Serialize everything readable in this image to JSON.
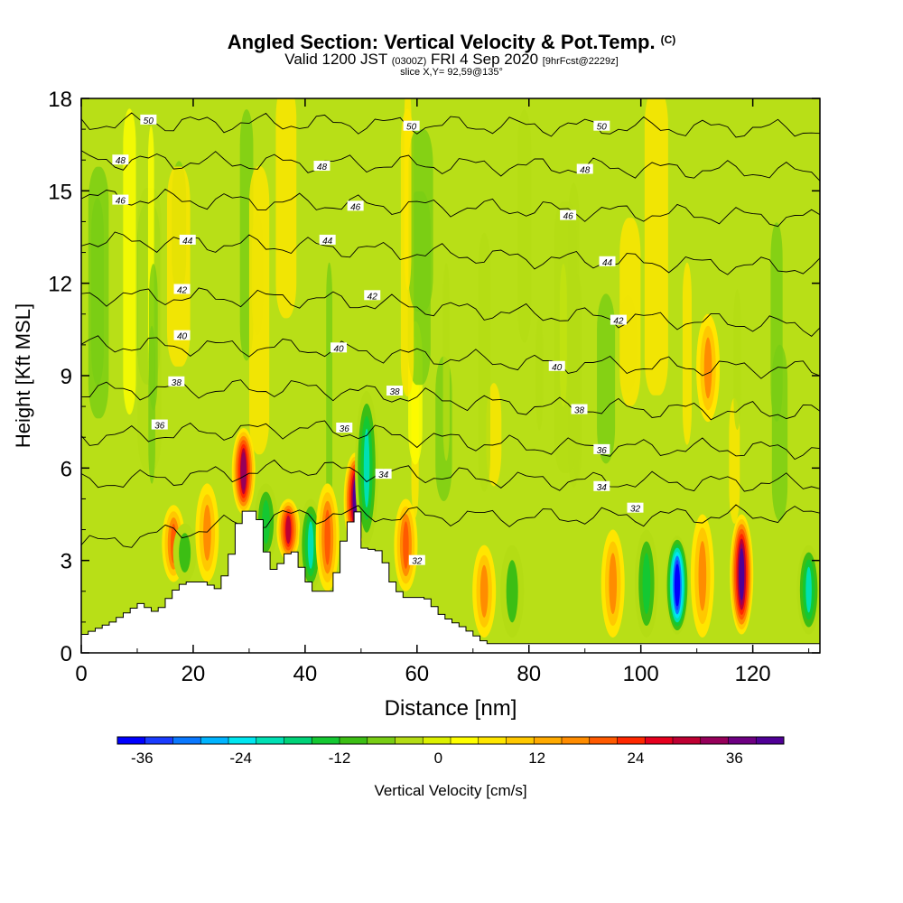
{
  "title": {
    "main": "Angled Section: Vertical Velocity & Pot.Temp.",
    "main_suffix": "(C)",
    "valid_prefix": "Valid 1200 JST",
    "valid_zulu": "(0300Z)",
    "valid_date": "FRI 4 Sep 2020",
    "forecast": "[9hrFcst@2229z]",
    "slice": "slice X,Y= 92,59@135°"
  },
  "chart_data": {
    "type": "heatmap",
    "title": "Angled Section: Vertical Velocity & Pot.Temp.",
    "xlabel": "Distance [nm]",
    "ylabel": "Height [Kft MSL]",
    "xlim": [
      0,
      132
    ],
    "ylim": [
      0,
      18
    ],
    "x_ticks": [
      "0",
      "20",
      "40",
      "60",
      "80",
      "100",
      "120"
    ],
    "y_ticks": [
      "0",
      "3",
      "6",
      "9",
      "12",
      "15",
      "18"
    ],
    "colorbar": {
      "label": "Vertical Velocity [cm/s]",
      "tick_labels": [
        "-36",
        "-24",
        "-12",
        "0",
        "12",
        "24",
        "36"
      ],
      "tick_values": [
        -36,
        -24,
        -12,
        0,
        12,
        24,
        36
      ],
      "range": [
        -39,
        42
      ],
      "colors": [
        "#0000ff",
        "#1a3cff",
        "#0a78ff",
        "#00b4ff",
        "#00e6f0",
        "#00e0b4",
        "#00d278",
        "#14c832",
        "#3cbe14",
        "#78cd14",
        "#b4dc14",
        "#dcf000",
        "#ffff00",
        "#ffe600",
        "#ffc800",
        "#ffaa00",
        "#ff8c00",
        "#ff5a00",
        "#ff2800",
        "#e6001e",
        "#be0032",
        "#96005a",
        "#6e0082",
        "#500096"
      ]
    },
    "vertical_velocity_features": [
      {
        "x": 16.5,
        "z_bottom": 2.3,
        "z_top": 4.8,
        "value": 22
      },
      {
        "x": 18.5,
        "z_bottom": 2.3,
        "z_top": 4.2,
        "value": -10
      },
      {
        "x": 22.5,
        "z_bottom": 2.3,
        "z_top": 5.5,
        "value": 14
      },
      {
        "x": 29,
        "z_bottom": 4.5,
        "z_top": 7.3,
        "value": 34
      },
      {
        "x": 33,
        "z_bottom": 3.0,
        "z_top": 5.5,
        "value": -14
      },
      {
        "x": 37,
        "z_bottom": 3.0,
        "z_top": 5.0,
        "value": 28
      },
      {
        "x": 41,
        "z_bottom": 2.0,
        "z_top": 5.0,
        "value": -20
      },
      {
        "x": 44,
        "z_bottom": 2.0,
        "z_top": 5.5,
        "value": 22
      },
      {
        "x": 49,
        "z_bottom": 3.4,
        "z_top": 6.5,
        "value": 40
      },
      {
        "x": 51,
        "z_bottom": 3.5,
        "z_top": 8.5,
        "value": -22
      },
      {
        "x": 58,
        "z_bottom": 2.0,
        "z_top": 5.0,
        "value": 20
      },
      {
        "x": 72,
        "z_bottom": 0.5,
        "z_top": 3.5,
        "value": 16
      },
      {
        "x": 77,
        "z_bottom": 0.5,
        "z_top": 3.5,
        "value": -12
      },
      {
        "x": 95,
        "z_bottom": 0.5,
        "z_top": 4.0,
        "value": 14
      },
      {
        "x": 101,
        "z_bottom": 0.5,
        "z_top": 4.0,
        "value": -14
      },
      {
        "x": 106.5,
        "z_bottom": 0.6,
        "z_top": 3.8,
        "value": -38
      },
      {
        "x": 111,
        "z_bottom": 0.5,
        "z_top": 4.5,
        "value": 14
      },
      {
        "x": 112,
        "z_bottom": 7.5,
        "z_top": 11.0,
        "value": 16
      },
      {
        "x": 118,
        "z_bottom": 0.6,
        "z_top": 4.5,
        "value": 40
      },
      {
        "x": 130,
        "z_bottom": 0.6,
        "z_top": 3.5,
        "value": -22
      }
    ],
    "terrain_height_kft": [
      [
        0,
        0.6
      ],
      [
        5,
        1.0
      ],
      [
        10,
        1.6
      ],
      [
        13,
        1.3
      ],
      [
        16,
        2.0
      ],
      [
        18,
        2.3
      ],
      [
        22,
        2.3
      ],
      [
        23.5,
        2.0
      ],
      [
        25,
        2.5
      ],
      [
        26,
        3.0
      ],
      [
        27,
        3.8
      ],
      [
        28,
        4.6
      ],
      [
        31,
        4.6
      ],
      [
        32,
        3.5
      ],
      [
        34,
        2.6
      ],
      [
        36,
        3.2
      ],
      [
        38,
        3.3
      ],
      [
        39,
        2.6
      ],
      [
        41,
        2.0
      ],
      [
        44,
        2.0
      ],
      [
        45,
        2.6
      ],
      [
        46,
        3.5
      ],
      [
        48,
        4.5
      ],
      [
        49,
        4.6
      ],
      [
        50,
        3.4
      ],
      [
        53,
        3.3
      ],
      [
        55,
        2.3
      ],
      [
        57,
        1.8
      ],
      [
        59,
        1.8
      ],
      [
        61,
        1.8
      ],
      [
        64,
        1.2
      ],
      [
        68,
        0.8
      ],
      [
        72,
        0.3
      ],
      [
        132,
        0.3
      ]
    ],
    "theta_contours": [
      {
        "label": "32",
        "z_at_x": [
          [
            0,
            3.5
          ],
          [
            40,
            4.5
          ],
          [
            80,
            4.4
          ],
          [
            132,
            4.5
          ]
        ],
        "label_positions": [
          [
            60,
            3.0
          ],
          [
            99,
            4.7
          ]
        ]
      },
      {
        "label": "34",
        "z_at_x": [
          [
            0,
            5.5
          ],
          [
            40,
            6.0
          ],
          [
            80,
            5.6
          ],
          [
            132,
            5.5
          ]
        ],
        "label_positions": [
          [
            54,
            5.8
          ],
          [
            93,
            5.4
          ]
        ]
      },
      {
        "label": "36",
        "z_at_x": [
          [
            0,
            7.0
          ],
          [
            40,
            7.3
          ],
          [
            80,
            6.7
          ],
          [
            132,
            6.6
          ]
        ],
        "label_positions": [
          [
            14,
            7.4
          ],
          [
            47,
            7.3
          ],
          [
            93,
            6.6
          ]
        ]
      },
      {
        "label": "38",
        "z_at_x": [
          [
            0,
            8.5
          ],
          [
            40,
            8.6
          ],
          [
            80,
            8.0
          ],
          [
            132,
            7.8
          ]
        ],
        "label_positions": [
          [
            17,
            8.8
          ],
          [
            56,
            8.5
          ],
          [
            89,
            7.9
          ]
        ]
      },
      {
        "label": "40",
        "z_at_x": [
          [
            0,
            10.0
          ],
          [
            40,
            9.9
          ],
          [
            80,
            9.4
          ],
          [
            132,
            9.2
          ]
        ],
        "label_positions": [
          [
            18,
            10.3
          ],
          [
            46,
            9.9
          ],
          [
            85,
            9.3
          ]
        ]
      },
      {
        "label": "42",
        "z_at_x": [
          [
            0,
            11.6
          ],
          [
            40,
            11.5
          ],
          [
            80,
            11.0
          ],
          [
            132,
            10.6
          ]
        ],
        "label_positions": [
          [
            18,
            11.8
          ],
          [
            52,
            11.6
          ],
          [
            96,
            10.8
          ]
        ]
      },
      {
        "label": "44",
        "z_at_x": [
          [
            0,
            13.4
          ],
          [
            40,
            13.2
          ],
          [
            80,
            12.8
          ],
          [
            132,
            12.5
          ]
        ],
        "label_positions": [
          [
            19,
            13.4
          ],
          [
            44,
            13.4
          ],
          [
            94,
            12.7
          ]
        ]
      },
      {
        "label": "46",
        "z_at_x": [
          [
            0,
            14.8
          ],
          [
            40,
            14.6
          ],
          [
            80,
            14.4
          ],
          [
            132,
            14.1
          ]
        ],
        "label_positions": [
          [
            7,
            14.7
          ],
          [
            49,
            14.5
          ],
          [
            87,
            14.2
          ]
        ]
      },
      {
        "label": "48",
        "z_at_x": [
          [
            0,
            16.0
          ],
          [
            40,
            15.9
          ],
          [
            80,
            15.8
          ],
          [
            132,
            15.6
          ]
        ],
        "label_positions": [
          [
            7,
            16.0
          ],
          [
            43,
            15.8
          ],
          [
            90,
            15.7
          ]
        ]
      },
      {
        "label": "50",
        "z_at_x": [
          [
            0,
            17.2
          ],
          [
            40,
            17.2
          ],
          [
            80,
            17.1
          ],
          [
            132,
            17.0
          ]
        ],
        "label_positions": [
          [
            12,
            17.3
          ],
          [
            59,
            17.1
          ],
          [
            93,
            17.1
          ]
        ]
      }
    ],
    "grid": false
  }
}
